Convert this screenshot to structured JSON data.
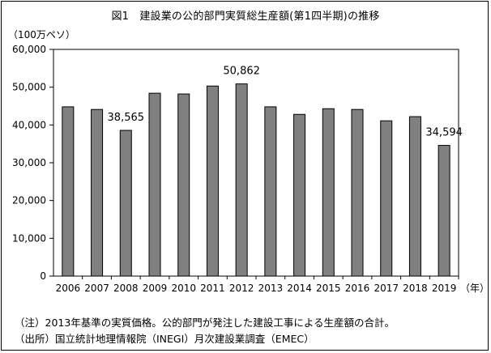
{
  "title": "図1　建設業の公的部門実質総生産額(第1四半期)の推移",
  "unit_label": "（100万ペソ）",
  "notes": [
    "（注）2013年基準の実質価格。公的部門が発注した建設工事による生産額の合計。",
    "（出所）国立統計地理情報院（INEGI）月次建設業調査（EMEC）"
  ],
  "chart_data": {
    "type": "bar",
    "title": "図1　建設業の公的部門実質総生産額(第1四半期)の推移",
    "ylabel": "（100万ペソ）",
    "xlabel": "（年）",
    "categories": [
      "2006",
      "2007",
      "2008",
      "2009",
      "2010",
      "2011",
      "2012",
      "2013",
      "2014",
      "2015",
      "2016",
      "2017",
      "2018",
      "2019"
    ],
    "values": [
      44800,
      44100,
      38565,
      48400,
      48200,
      50300,
      50862,
      44800,
      42800,
      44300,
      44100,
      41100,
      42200,
      34594
    ],
    "data_labels": [
      {
        "category": "2008",
        "text": "38,565"
      },
      {
        "category": "2012",
        "text": "50,862"
      },
      {
        "category": "2019",
        "text": "34,594"
      }
    ],
    "ylim": [
      0,
      60000
    ],
    "yticks": [
      0,
      10000,
      20000,
      30000,
      40000,
      50000,
      60000
    ],
    "ytick_labels": [
      "0",
      "10,000",
      "20,000",
      "30,000",
      "40,000",
      "50,000",
      "60,000"
    ],
    "grid": false,
    "bar_color": "#808080"
  }
}
